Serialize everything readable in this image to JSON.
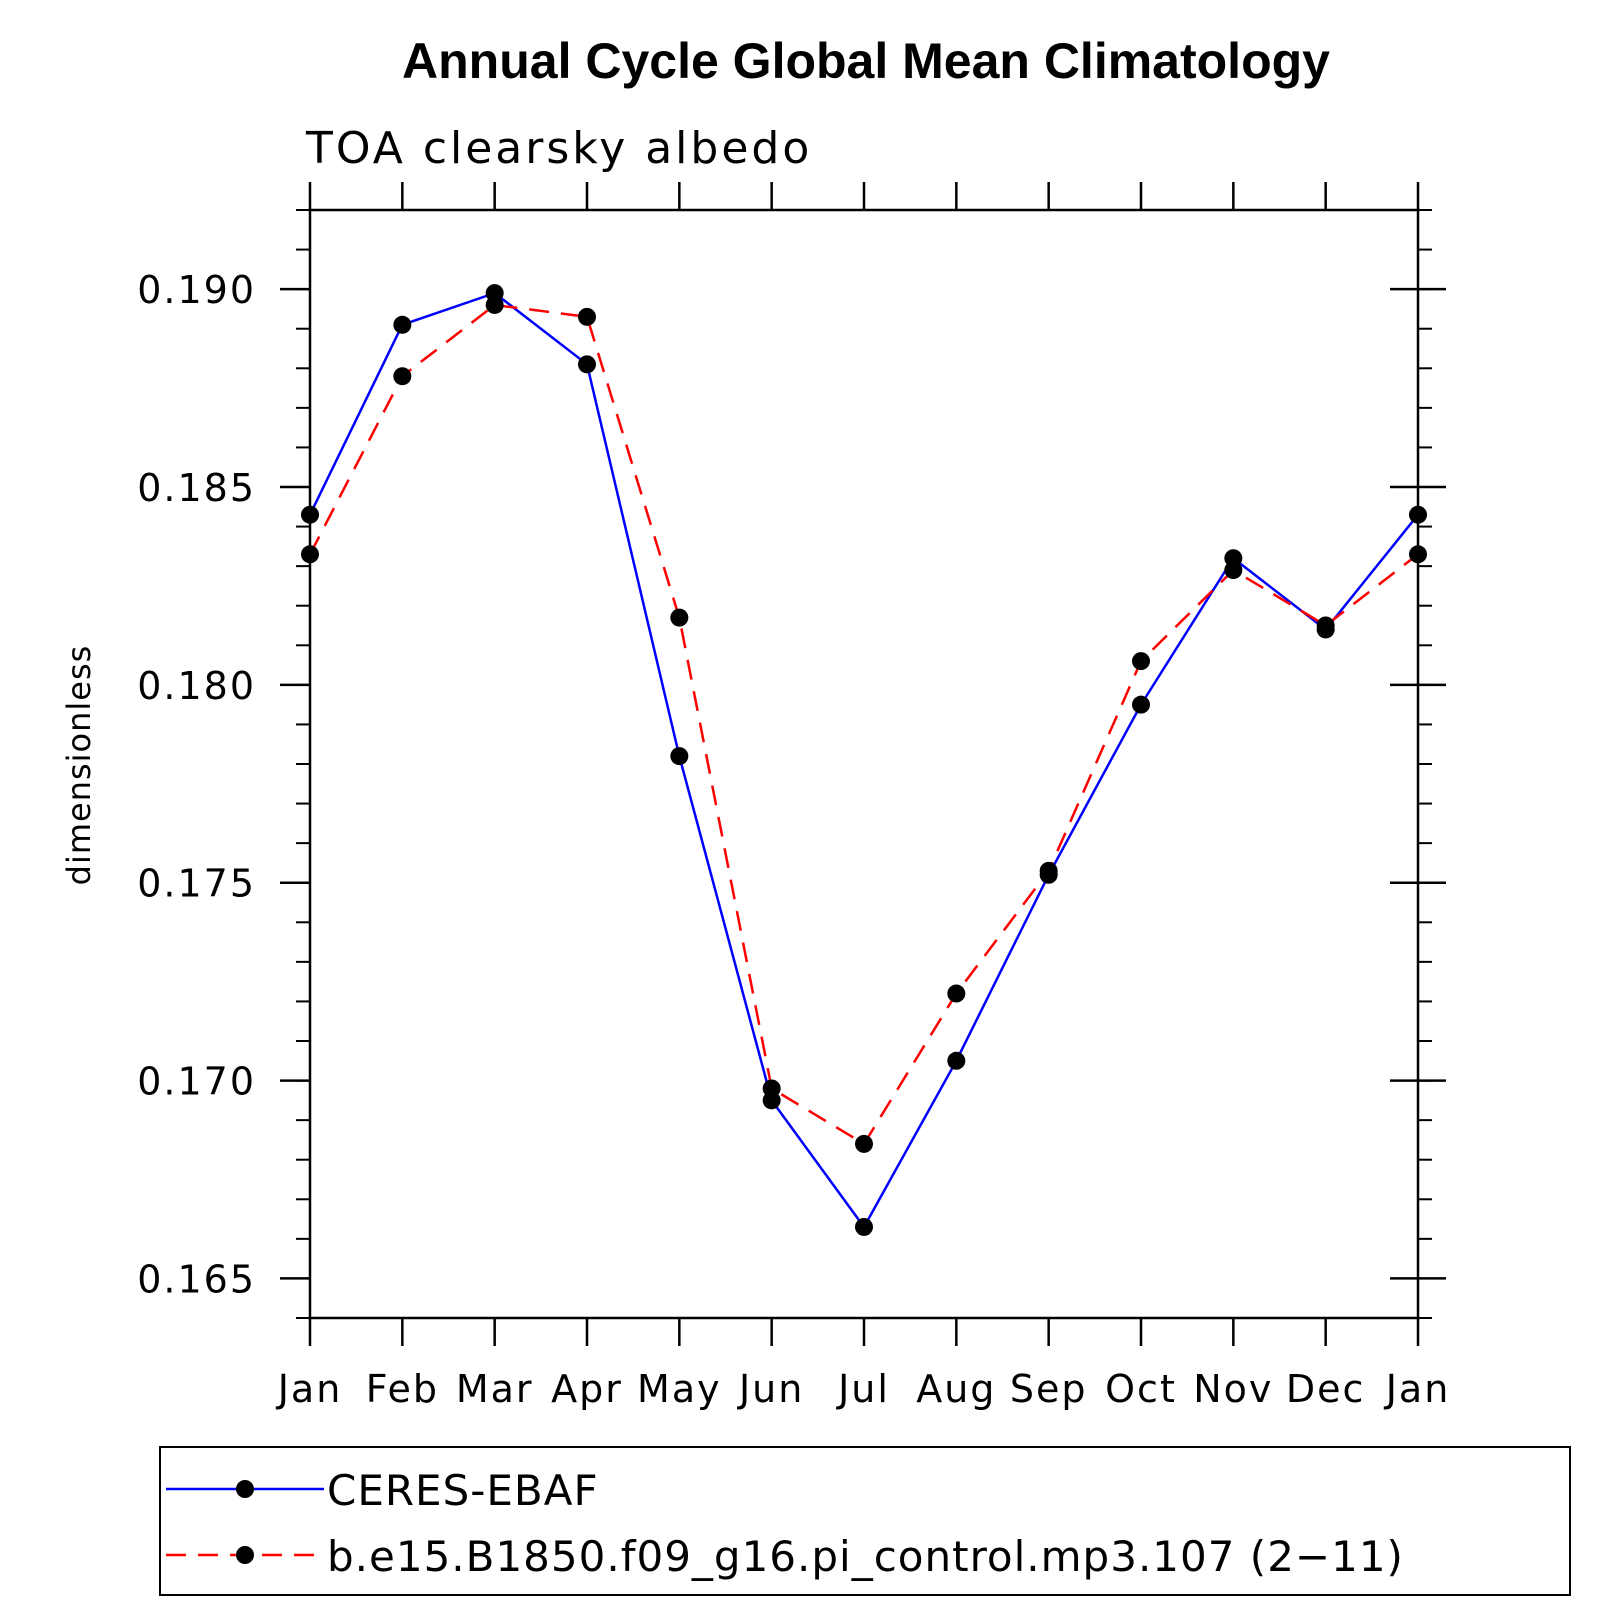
{
  "chart_data": {
    "type": "line",
    "title": "Annual Cycle Global Mean Climatology",
    "subtitle": "TOA clearsky albedo",
    "xlabel": "",
    "ylabel": "dimensionless",
    "categories": [
      "Jan",
      "Feb",
      "Mar",
      "Apr",
      "May",
      "Jun",
      "Jul",
      "Aug",
      "Sep",
      "Oct",
      "Nov",
      "Dec",
      "Jan"
    ],
    "yticks": [
      "0.165",
      "0.170",
      "0.175",
      "0.180",
      "0.185",
      "0.190"
    ],
    "ylim": [
      0.164,
      0.192
    ],
    "grid": false,
    "legend_position": "bottom",
    "series": [
      {
        "name": "CERES-EBAF",
        "color": "#0000ff",
        "line_style": "solid",
        "marker": "filled-circle",
        "values": [
          0.1843,
          0.1891,
          0.1899,
          0.1881,
          0.1782,
          0.1695,
          0.1663,
          0.1705,
          0.1752,
          0.1795,
          0.1832,
          0.1814,
          0.1843
        ]
      },
      {
        "name": "b.e15.B1850.f09_g16.pi_control.mp3.107 (2−11)",
        "color": "#ff0000",
        "line_style": "dashed",
        "marker": "filled-circle",
        "values": [
          0.1833,
          0.1878,
          0.1896,
          0.1893,
          0.1817,
          0.1698,
          0.1684,
          0.1722,
          0.1753,
          0.1806,
          0.1829,
          0.1815,
          0.1833
        ]
      }
    ]
  }
}
